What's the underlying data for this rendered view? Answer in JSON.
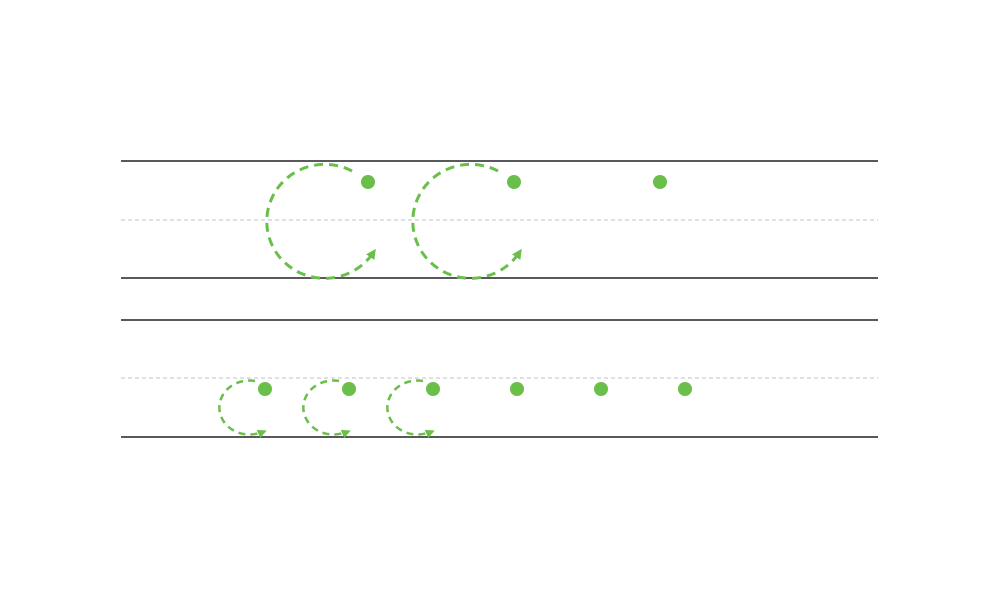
{
  "colors": {
    "background": "#ffffff",
    "rule_line": "#222222",
    "midline": "#c2c2c2",
    "guide_green": "#6abf4b"
  },
  "worksheet": {
    "rows": [
      {
        "letter_size": "uppercase",
        "traced_letters": 2,
        "start_dots": 3
      },
      {
        "letter_size": "lowercase",
        "traced_letters": 3,
        "start_dots": 6
      }
    ]
  }
}
